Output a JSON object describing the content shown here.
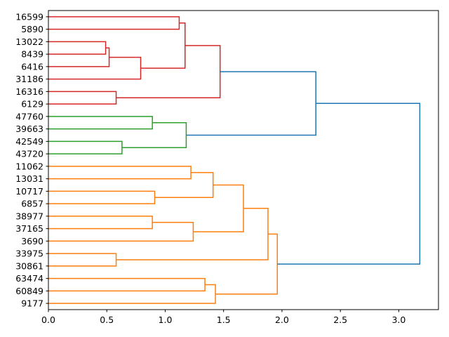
{
  "chart_data": {
    "type": "dendrogram",
    "title": "",
    "xlabel": "",
    "ylabel": "",
    "orientation": "left",
    "xlim": [
      0,
      3.34
    ],
    "xticks": [
      0.0,
      0.5,
      1.0,
      1.5,
      2.0,
      2.5,
      3.0
    ],
    "xtick_labels": [
      "0.0",
      "0.5",
      "1.0",
      "1.5",
      "2.0",
      "2.5",
      "3.0"
    ],
    "leaves": [
      "16599",
      "5890",
      "13022",
      "8439",
      "6416",
      "31186",
      "16316",
      "6129",
      "47760",
      "39663",
      "42549",
      "43720",
      "11062",
      "13031",
      "10717",
      "6857",
      "38977",
      "37165",
      "3690",
      "33975",
      "30861",
      "63474",
      "60849",
      "9177"
    ],
    "colors": {
      "red": "#d62728",
      "green": "#2ca02c",
      "orange": "#ff7f0e",
      "blue": "#1f77b4"
    },
    "merges": [
      {
        "left": 0,
        "right": 1,
        "height": 1.12,
        "color": "red"
      },
      {
        "left": 2,
        "right": 3,
        "height": 0.49,
        "color": "red"
      },
      {
        "left": 25,
        "right": 4,
        "height": 0.52,
        "color": "red"
      },
      {
        "left": 26,
        "right": 5,
        "height": 0.79,
        "color": "red"
      },
      {
        "left": 24,
        "right": 27,
        "height": 1.17,
        "color": "red"
      },
      {
        "left": 6,
        "right": 7,
        "height": 0.58,
        "color": "red"
      },
      {
        "left": 28,
        "right": 29,
        "height": 1.47,
        "color": "red"
      },
      {
        "left": 8,
        "right": 9,
        "height": 0.89,
        "color": "green"
      },
      {
        "left": 10,
        "right": 11,
        "height": 0.63,
        "color": "green"
      },
      {
        "left": 31,
        "right": 32,
        "height": 1.18,
        "color": "green"
      },
      {
        "left": 30,
        "right": 33,
        "height": 2.29,
        "color": "blue"
      },
      {
        "left": 12,
        "right": 13,
        "height": 1.22,
        "color": "orange"
      },
      {
        "left": 14,
        "right": 15,
        "height": 0.91,
        "color": "orange"
      },
      {
        "left": 35,
        "right": 36,
        "height": 1.41,
        "color": "orange"
      },
      {
        "left": 16,
        "right": 17,
        "height": 0.89,
        "color": "orange"
      },
      {
        "left": 38,
        "right": 18,
        "height": 1.24,
        "color": "orange"
      },
      {
        "left": 37,
        "right": 39,
        "height": 1.67,
        "color": "orange"
      },
      {
        "left": 19,
        "right": 20,
        "height": 0.58,
        "color": "orange"
      },
      {
        "left": 40,
        "right": 41,
        "height": 1.88,
        "color": "orange"
      },
      {
        "left": 21,
        "right": 22,
        "height": 1.34,
        "color": "orange"
      },
      {
        "left": 43,
        "right": 23,
        "height": 1.43,
        "color": "orange"
      },
      {
        "left": 42,
        "right": 44,
        "height": 1.96,
        "color": "orange"
      },
      {
        "left": 34,
        "right": 45,
        "height": 3.18,
        "color": "blue"
      }
    ]
  }
}
